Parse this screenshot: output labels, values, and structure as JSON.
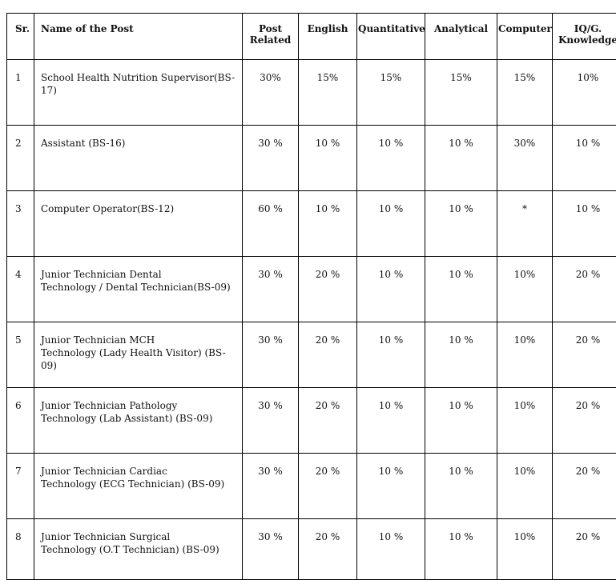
{
  "headers": {
    "sr": "Sr.",
    "name": "Name of the Post",
    "post_related": [
      "Post",
      "Related"
    ],
    "english": "English",
    "quantitative": "Quantitative",
    "analytical": "Analytical",
    "computer": "Computer",
    "iq": [
      "IQ/G.",
      "Knowledge"
    ]
  },
  "rows": [
    {
      "sr": "1",
      "name": [
        "School Health Nutrition Supervisor(BS-17)"
      ],
      "post_related": "30%",
      "english": "15%",
      "quantitative": "15%",
      "analytical": "15%",
      "computer": "15%",
      "iq": "10%"
    },
    {
      "sr": "2",
      "name": [
        "Assistant (BS-16)"
      ],
      "post_related": "30 %",
      "english": "10 %",
      "quantitative": "10 %",
      "analytical": "10 %",
      "computer": "30%",
      "iq": "10 %"
    },
    {
      "sr": "3",
      "name": [
        "Computer Operator(BS-12)"
      ],
      "post_related": "60 %",
      "english": "10 %",
      "quantitative": "10 %",
      "analytical": "10 %",
      "computer": "*",
      "iq": "10 %"
    },
    {
      "sr": "4",
      "name": [
        "Junior Technician Dental",
        "Technology / Dental Technician(BS-09)"
      ],
      "post_related": "30 %",
      "english": "20 %",
      "quantitative": "10 %",
      "analytical": "10 %",
      "computer": "10%",
      "iq": "20 %"
    },
    {
      "sr": "5",
      "name": [
        "Junior Technician MCH",
        "Technology (Lady Health Visitor) (BS-09)"
      ],
      "post_related": "30 %",
      "english": "20 %",
      "quantitative": "10 %",
      "analytical": "10 %",
      "computer": "10%",
      "iq": "20 %"
    },
    {
      "sr": "6",
      "name": [
        "Junior Technician Pathology",
        "Technology (Lab Assistant) (BS-09)"
      ],
      "post_related": "30 %",
      "english": "20 %",
      "quantitative": "10 %",
      "analytical": "10 %",
      "computer": "10%",
      "iq": "20 %"
    },
    {
      "sr": "7",
      "name": [
        "Junior Technician Cardiac",
        "Technology (ECG Technician) (BS-09)"
      ],
      "post_related": "30 %",
      "english": "20 %",
      "quantitative": "10 %",
      "analytical": "10 %",
      "computer": "10%",
      "iq": "20 %"
    },
    {
      "sr": "8",
      "name": [
        "Junior Technician Surgical",
        "Technology (O.T Technician) (BS-09)"
      ],
      "post_related": "30 %",
      "english": "20 %",
      "quantitative": "10 %",
      "analytical": "10 %",
      "computer": "10%",
      "iq": "20 %"
    }
  ]
}
